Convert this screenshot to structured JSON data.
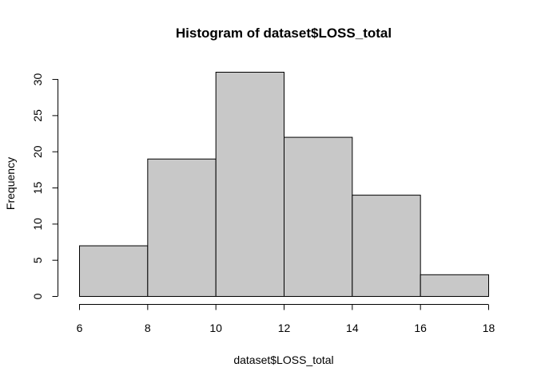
{
  "chart_data": {
    "type": "bar",
    "title": "Histogram of dataset$LOSS_total",
    "xlabel": "dataset$LOSS_total",
    "ylabel": "Frequency",
    "bins": [
      {
        "start": 6,
        "end": 8,
        "count": 7
      },
      {
        "start": 8,
        "end": 10,
        "count": 19
      },
      {
        "start": 10,
        "end": 12,
        "count": 31
      },
      {
        "start": 12,
        "end": 14,
        "count": 22
      },
      {
        "start": 14,
        "end": 16,
        "count": 14
      },
      {
        "start": 16,
        "end": 18,
        "count": 3
      }
    ],
    "xlim": [
      6,
      18
    ],
    "ylim": [
      0,
      31
    ],
    "x_ticks": [
      "6",
      "8",
      "10",
      "12",
      "14",
      "16",
      "18"
    ],
    "y_ticks": [
      "0",
      "5",
      "10",
      "15",
      "20",
      "25",
      "30"
    ],
    "bar_color": "#c8c8c8",
    "grid": false
  }
}
